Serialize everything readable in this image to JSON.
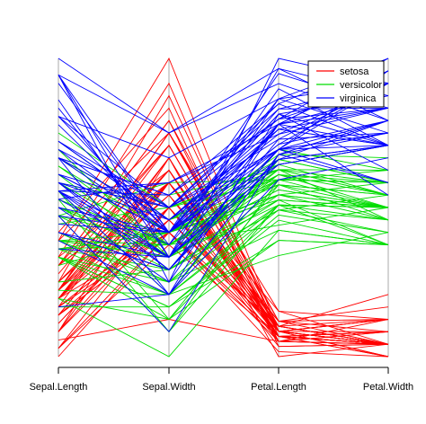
{
  "chart_data": {
    "type": "parallel_coordinates",
    "axes": [
      "Sepal.Length",
      "Sepal.Width",
      "Petal.Length",
      "Petal.Width"
    ],
    "ranges": {
      "Sepal.Length": [
        4.3,
        7.9
      ],
      "Sepal.Width": [
        2.0,
        4.4
      ],
      "Petal.Length": [
        1.0,
        6.9
      ],
      "Petal.Width": [
        0.1,
        2.5
      ]
    },
    "legend": {
      "position": "top-right"
    },
    "colors": {
      "setosa": "#ff0000",
      "versicolor": "#00dd00",
      "virginica": "#0000ff"
    },
    "series": [
      {
        "name": "setosa",
        "rows": [
          [
            5.1,
            3.5,
            1.4,
            0.2
          ],
          [
            4.9,
            3.0,
            1.4,
            0.2
          ],
          [
            4.7,
            3.2,
            1.3,
            0.2
          ],
          [
            4.6,
            3.1,
            1.5,
            0.2
          ],
          [
            5.0,
            3.6,
            1.4,
            0.2
          ],
          [
            5.4,
            3.9,
            1.7,
            0.4
          ],
          [
            4.6,
            3.4,
            1.4,
            0.3
          ],
          [
            5.0,
            3.4,
            1.5,
            0.2
          ],
          [
            4.4,
            2.9,
            1.4,
            0.2
          ],
          [
            4.9,
            3.1,
            1.5,
            0.1
          ],
          [
            5.4,
            3.7,
            1.5,
            0.2
          ],
          [
            4.8,
            3.4,
            1.6,
            0.2
          ],
          [
            4.8,
            3.0,
            1.4,
            0.1
          ],
          [
            4.3,
            3.0,
            1.1,
            0.1
          ],
          [
            5.8,
            4.0,
            1.2,
            0.2
          ],
          [
            5.7,
            4.4,
            1.5,
            0.4
          ],
          [
            5.4,
            3.9,
            1.3,
            0.4
          ],
          [
            5.1,
            3.5,
            1.4,
            0.3
          ],
          [
            5.7,
            3.8,
            1.7,
            0.3
          ],
          [
            5.1,
            3.8,
            1.5,
            0.3
          ],
          [
            5.4,
            3.4,
            1.7,
            0.2
          ],
          [
            5.1,
            3.7,
            1.5,
            0.4
          ],
          [
            4.6,
            3.6,
            1.0,
            0.2
          ],
          [
            5.1,
            3.3,
            1.7,
            0.5
          ],
          [
            4.8,
            3.4,
            1.9,
            0.2
          ],
          [
            5.0,
            3.0,
            1.6,
            0.2
          ],
          [
            5.0,
            3.4,
            1.6,
            0.4
          ],
          [
            5.2,
            3.5,
            1.5,
            0.2
          ],
          [
            5.2,
            3.4,
            1.4,
            0.2
          ],
          [
            4.7,
            3.2,
            1.6,
            0.2
          ],
          [
            4.8,
            3.1,
            1.6,
            0.2
          ],
          [
            5.4,
            3.4,
            1.5,
            0.4
          ],
          [
            5.2,
            4.1,
            1.5,
            0.1
          ],
          [
            5.5,
            4.2,
            1.4,
            0.2
          ],
          [
            4.9,
            3.1,
            1.5,
            0.2
          ],
          [
            5.0,
            3.2,
            1.2,
            0.2
          ],
          [
            5.5,
            3.5,
            1.3,
            0.2
          ],
          [
            4.9,
            3.6,
            1.4,
            0.1
          ],
          [
            4.4,
            3.0,
            1.3,
            0.2
          ],
          [
            5.1,
            3.4,
            1.5,
            0.2
          ],
          [
            5.0,
            3.5,
            1.3,
            0.3
          ],
          [
            4.5,
            2.3,
            1.3,
            0.3
          ],
          [
            4.4,
            3.2,
            1.3,
            0.2
          ],
          [
            5.0,
            3.5,
            1.6,
            0.6
          ],
          [
            5.1,
            3.8,
            1.9,
            0.4
          ],
          [
            4.8,
            3.0,
            1.4,
            0.3
          ],
          [
            5.1,
            3.8,
            1.6,
            0.2
          ],
          [
            4.6,
            3.2,
            1.4,
            0.2
          ],
          [
            5.3,
            3.7,
            1.5,
            0.2
          ],
          [
            5.0,
            3.3,
            1.4,
            0.2
          ]
        ]
      },
      {
        "name": "versicolor",
        "rows": [
          [
            7.0,
            3.2,
            4.7,
            1.4
          ],
          [
            6.4,
            3.2,
            4.5,
            1.5
          ],
          [
            6.9,
            3.1,
            4.9,
            1.5
          ],
          [
            5.5,
            2.3,
            4.0,
            1.3
          ],
          [
            6.5,
            2.8,
            4.6,
            1.5
          ],
          [
            5.7,
            2.8,
            4.5,
            1.3
          ],
          [
            6.3,
            3.3,
            4.7,
            1.6
          ],
          [
            4.9,
            2.4,
            3.3,
            1.0
          ],
          [
            6.6,
            2.9,
            4.6,
            1.3
          ],
          [
            5.2,
            2.7,
            3.9,
            1.4
          ],
          [
            5.0,
            2.0,
            3.5,
            1.0
          ],
          [
            5.9,
            3.0,
            4.2,
            1.5
          ],
          [
            6.0,
            2.2,
            4.0,
            1.0
          ],
          [
            6.1,
            2.9,
            4.7,
            1.4
          ],
          [
            5.6,
            2.9,
            3.6,
            1.3
          ],
          [
            6.7,
            3.1,
            4.4,
            1.4
          ],
          [
            5.6,
            3.0,
            4.5,
            1.5
          ],
          [
            5.8,
            2.7,
            4.1,
            1.0
          ],
          [
            6.2,
            2.2,
            4.5,
            1.5
          ],
          [
            5.6,
            2.5,
            3.9,
            1.1
          ],
          [
            5.9,
            3.2,
            4.8,
            1.8
          ],
          [
            6.1,
            2.8,
            4.0,
            1.3
          ],
          [
            6.3,
            2.5,
            4.9,
            1.5
          ],
          [
            6.1,
            2.8,
            4.7,
            1.2
          ],
          [
            6.4,
            2.9,
            4.3,
            1.3
          ],
          [
            6.6,
            3.0,
            4.4,
            1.4
          ],
          [
            6.8,
            2.8,
            4.8,
            1.4
          ],
          [
            6.7,
            3.0,
            5.0,
            1.7
          ],
          [
            6.0,
            2.9,
            4.5,
            1.5
          ],
          [
            5.7,
            2.6,
            3.5,
            1.0
          ],
          [
            5.5,
            2.4,
            3.8,
            1.1
          ],
          [
            5.5,
            2.4,
            3.7,
            1.0
          ],
          [
            5.8,
            2.7,
            3.9,
            1.2
          ],
          [
            6.0,
            2.7,
            5.1,
            1.6
          ],
          [
            5.4,
            3.0,
            4.5,
            1.5
          ],
          [
            6.0,
            3.4,
            4.5,
            1.6
          ],
          [
            6.7,
            3.1,
            4.7,
            1.5
          ],
          [
            6.3,
            2.3,
            4.4,
            1.3
          ],
          [
            5.6,
            3.0,
            4.1,
            1.3
          ],
          [
            5.5,
            2.5,
            4.0,
            1.3
          ],
          [
            5.5,
            2.6,
            4.4,
            1.2
          ],
          [
            6.1,
            3.0,
            4.6,
            1.4
          ],
          [
            5.8,
            2.6,
            4.0,
            1.2
          ],
          [
            5.0,
            2.3,
            3.3,
            1.0
          ],
          [
            5.6,
            2.7,
            4.2,
            1.3
          ],
          [
            5.7,
            3.0,
            4.2,
            1.2
          ],
          [
            5.7,
            2.9,
            4.2,
            1.3
          ],
          [
            6.2,
            2.9,
            4.3,
            1.3
          ],
          [
            5.1,
            2.5,
            3.0,
            1.1
          ],
          [
            5.7,
            2.8,
            4.1,
            1.3
          ]
        ]
      },
      {
        "name": "virginica",
        "rows": [
          [
            6.3,
            3.3,
            6.0,
            2.5
          ],
          [
            5.8,
            2.7,
            5.1,
            1.9
          ],
          [
            7.1,
            3.0,
            5.9,
            2.1
          ],
          [
            6.3,
            2.9,
            5.6,
            1.8
          ],
          [
            6.5,
            3.0,
            5.8,
            2.2
          ],
          [
            7.6,
            3.0,
            6.6,
            2.1
          ],
          [
            4.9,
            2.5,
            4.5,
            1.7
          ],
          [
            7.3,
            2.9,
            6.3,
            1.8
          ],
          [
            6.7,
            2.5,
            5.8,
            1.8
          ],
          [
            7.2,
            3.6,
            6.1,
            2.5
          ],
          [
            6.5,
            3.2,
            5.1,
            2.0
          ],
          [
            6.4,
            2.7,
            5.3,
            1.9
          ],
          [
            6.8,
            3.0,
            5.5,
            2.1
          ],
          [
            5.7,
            2.5,
            5.0,
            2.0
          ],
          [
            5.8,
            2.8,
            5.1,
            2.4
          ],
          [
            6.4,
            3.2,
            5.3,
            2.3
          ],
          [
            6.5,
            3.0,
            5.5,
            1.8
          ],
          [
            7.7,
            3.8,
            6.7,
            2.2
          ],
          [
            7.7,
            2.6,
            6.9,
            2.3
          ],
          [
            6.0,
            2.2,
            5.0,
            1.5
          ],
          [
            6.9,
            3.2,
            5.7,
            2.3
          ],
          [
            5.6,
            2.8,
            4.9,
            2.0
          ],
          [
            7.7,
            2.8,
            6.7,
            2.0
          ],
          [
            6.3,
            2.7,
            4.9,
            1.8
          ],
          [
            6.7,
            3.3,
            5.7,
            2.1
          ],
          [
            7.2,
            3.2,
            6.0,
            1.8
          ],
          [
            6.2,
            2.8,
            4.8,
            1.8
          ],
          [
            6.1,
            3.0,
            4.9,
            1.8
          ],
          [
            6.4,
            2.8,
            5.6,
            2.1
          ],
          [
            7.2,
            3.0,
            5.8,
            1.6
          ],
          [
            7.4,
            2.8,
            6.1,
            1.9
          ],
          [
            7.9,
            3.8,
            6.4,
            2.0
          ],
          [
            6.4,
            2.8,
            5.6,
            2.2
          ],
          [
            6.3,
            2.8,
            5.1,
            1.5
          ],
          [
            6.1,
            2.6,
            5.6,
            1.4
          ],
          [
            7.7,
            3.0,
            6.1,
            2.3
          ],
          [
            6.3,
            3.4,
            5.6,
            2.4
          ],
          [
            6.4,
            3.1,
            5.5,
            1.8
          ],
          [
            6.0,
            3.0,
            4.8,
            1.8
          ],
          [
            6.9,
            3.1,
            5.4,
            2.1
          ],
          [
            6.7,
            3.1,
            5.6,
            2.4
          ],
          [
            6.9,
            3.1,
            5.1,
            2.3
          ],
          [
            5.8,
            2.7,
            5.1,
            1.9
          ],
          [
            6.8,
            3.2,
            5.9,
            2.3
          ],
          [
            6.7,
            3.3,
            5.7,
            2.5
          ],
          [
            6.7,
            3.0,
            5.2,
            2.3
          ],
          [
            6.3,
            2.5,
            5.0,
            1.9
          ],
          [
            6.5,
            3.0,
            5.2,
            2.0
          ],
          [
            6.2,
            3.4,
            5.4,
            2.3
          ],
          [
            5.9,
            3.0,
            5.1,
            1.8
          ]
        ]
      }
    ]
  }
}
